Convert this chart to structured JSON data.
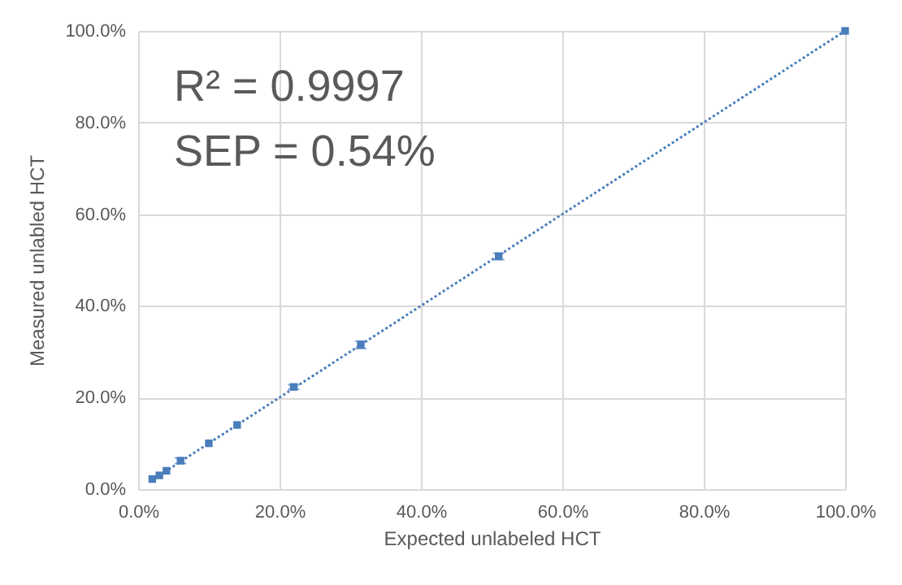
{
  "chart_data": {
    "type": "scatter",
    "xlabel": "Expected unlabeled HCT",
    "ylabel": "Measured  unlabled HCT",
    "annotations": [
      "R² = 0.9997",
      "SEP = 0.54%"
    ],
    "xlim": [
      0,
      100
    ],
    "ylim": [
      0,
      100
    ],
    "xticks": [
      {
        "value": 0,
        "label": "0.0%"
      },
      {
        "value": 20,
        "label": "20.0%"
      },
      {
        "value": 40,
        "label": "40.0%"
      },
      {
        "value": 60,
        "label": "60.0%"
      },
      {
        "value": 80,
        "label": "80.0%"
      },
      {
        "value": 100,
        "label": "100.0%"
      }
    ],
    "yticks": [
      {
        "value": 0,
        "label": "0.0%"
      },
      {
        "value": 20,
        "label": "20.0%"
      },
      {
        "value": 40,
        "label": "40.0%"
      },
      {
        "value": 60,
        "label": "60.0%"
      },
      {
        "value": 80,
        "label": "80.0%"
      },
      {
        "value": 100,
        "label": "100.0%"
      }
    ],
    "grid": true,
    "series": [
      {
        "marker": "square",
        "color": "#4a7ebb",
        "x": [
          2,
          3,
          4,
          6,
          10,
          14,
          22,
          31.5,
          51,
          100
        ],
        "values": [
          2.2,
          3,
          4,
          6.2,
          10,
          14,
          22.3,
          31.5,
          50.8,
          100
        ],
        "errors": [
          null,
          null,
          null,
          0.6,
          null,
          null,
          0.5,
          0.8,
          0.7,
          null
        ]
      },
      {
        "type": "line",
        "marker": "none",
        "color": "#4a7ebb",
        "line_style": "dotted",
        "x": [
          2,
          100
        ],
        "values": [
          2,
          100
        ]
      }
    ]
  }
}
